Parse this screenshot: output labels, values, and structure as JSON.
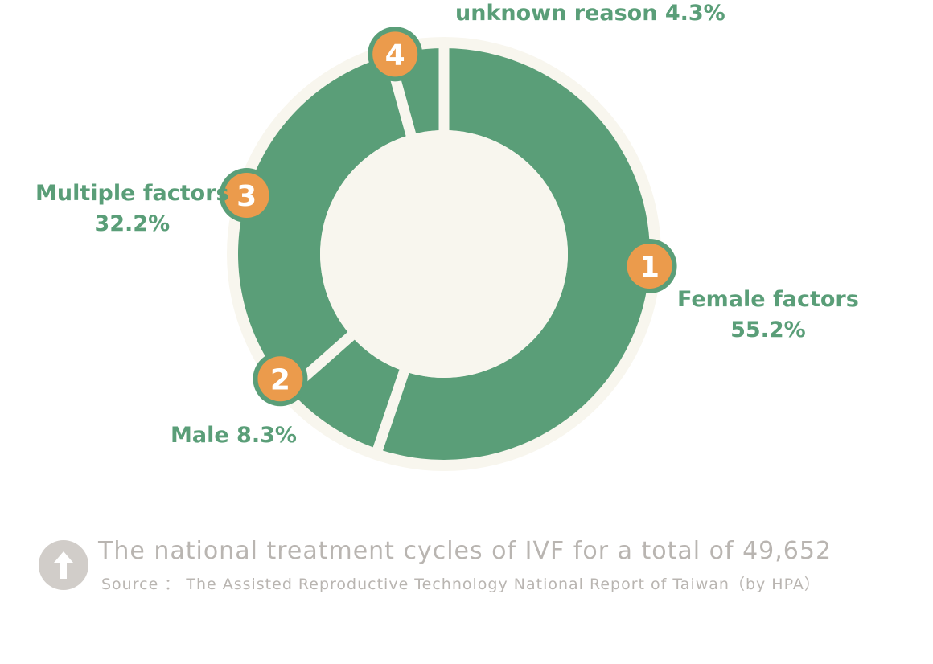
{
  "chart_data": {
    "type": "pie",
    "donut": true,
    "categories": [
      "Female factors",
      "Male",
      "Multiple factors",
      "unknown reason"
    ],
    "values": [
      55.2,
      8.3,
      32.2,
      4.3
    ],
    "unit": "%",
    "markers": [
      "1",
      "2",
      "3",
      "4"
    ],
    "labels": {
      "female": {
        "name": "Female factors",
        "value": "55.2%"
      },
      "male": {
        "text": "Male 8.3%"
      },
      "multiple": {
        "name": "Multiple factors",
        "value": "32.2%"
      },
      "unknown": {
        "text": "unknown reason 4.3%"
      }
    },
    "colors": {
      "slice": "#5a9e78",
      "marker": "#eb9b4c",
      "background_ring": "#f8f6ee",
      "hole": "#f8f6ee"
    }
  },
  "footer": {
    "icon": "arrow-up-icon",
    "title": "The national treatment cycles of IVF for a total of  49,652",
    "source": "Source ： The Assisted Reproductive Technology National Report of Taiwan（by HPA）",
    "icon_color": "#d1cdc9",
    "text_color": "#b9b5b1"
  }
}
